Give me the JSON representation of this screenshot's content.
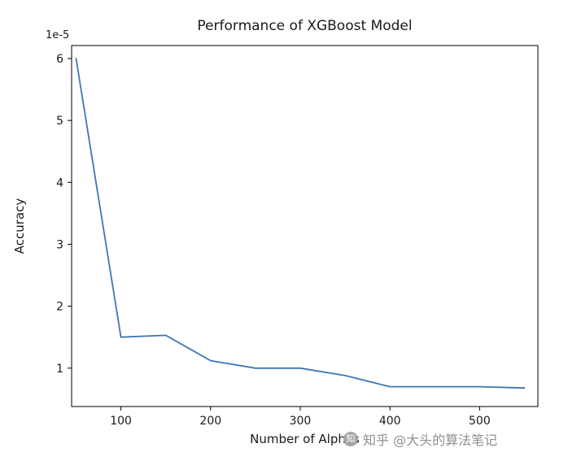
{
  "chart_data": {
    "type": "line",
    "title": "Performance of XGBoost Model",
    "xlabel": "Number of Alphas",
    "ylabel": "Accuracy",
    "y_offset_text": "1e-5",
    "x": [
      50,
      100,
      150,
      200,
      250,
      300,
      350,
      400,
      450,
      500,
      550
    ],
    "values": [
      6.0,
      1.5,
      1.53,
      1.12,
      1.0,
      1.0,
      0.88,
      0.7,
      0.7,
      0.7,
      0.68
    ],
    "y_unit_multiplier": 1e-05,
    "xlim": [
      45,
      565
    ],
    "ylim": [
      0.38,
      6.21
    ],
    "xticks": [
      100,
      200,
      300,
      400,
      500
    ],
    "yticks": [
      1,
      2,
      3,
      4,
      5,
      6
    ],
    "line_color": "#3d76b4",
    "axis_color": "#000000",
    "tick_label_color": "#1a1a1a",
    "grid": false,
    "legend": null
  },
  "watermark": {
    "icon_char": "知",
    "text": "知乎 @大头的算法笔记"
  }
}
